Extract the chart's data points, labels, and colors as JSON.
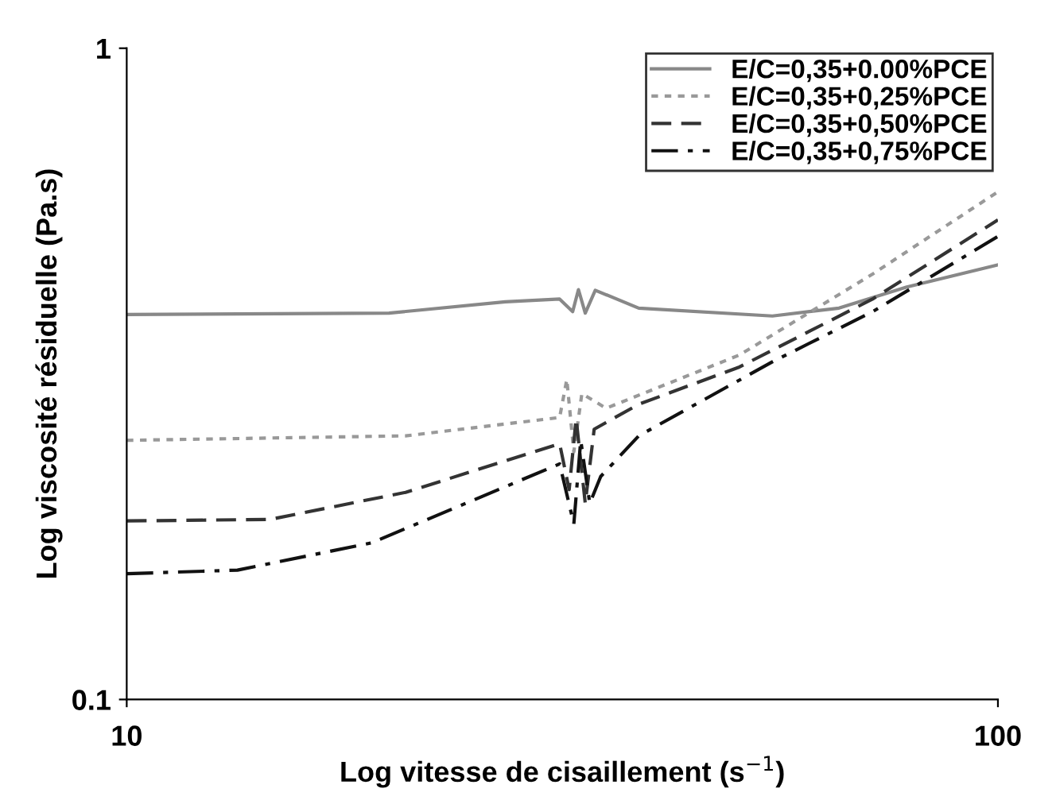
{
  "chart_data": {
    "type": "line",
    "xlabel": "Log vitesse de cisaillement (s$^{−1}$)",
    "ylabel": "Log viscosité résiduelle (Pa.s)",
    "log": "xy",
    "xlim": [
      10,
      100
    ],
    "ylim": [
      0.1,
      1
    ],
    "xticks": [
      10,
      100
    ],
    "yticks": [
      0.1,
      1
    ],
    "grid": false,
    "legend": "top right",
    "marker": "none",
    "series": [
      {
        "name": "E/C=0,35+0.00%PCE",
        "color": "#888888",
        "line_style": "solid",
        "x": [
          10,
          20,
          27.2,
          31.4,
          32.5,
          33,
          33.6,
          34.5,
          38.7,
          55.1,
          65.7,
          78.6,
          100
        ],
        "values": [
          0.39,
          0.392,
          0.408,
          0.412,
          0.394,
          0.426,
          0.392,
          0.425,
          0.399,
          0.388,
          0.399,
          0.43,
          0.465
        ]
      },
      {
        "name": "E/C=0,35+0,25%PCE",
        "color": "#999999",
        "line_style": "dotted",
        "x": [
          10,
          20.9,
          31.4,
          32,
          32.6,
          33.3,
          35.5,
          50.5,
          71.8,
          100
        ],
        "values": [
          0.25,
          0.254,
          0.271,
          0.31,
          0.24,
          0.295,
          0.28,
          0.338,
          0.45,
          0.602
        ]
      },
      {
        "name": "E/C=0,35+0,50%PCE",
        "color": "#333333",
        "line_style": "dashed",
        "x": [
          10,
          14.6,
          20.9,
          31.4,
          32.2,
          32.8,
          33.6,
          34.4,
          38.7,
          50.5,
          71.8,
          100
        ],
        "values": [
          0.188,
          0.189,
          0.208,
          0.247,
          0.21,
          0.27,
          0.2,
          0.26,
          0.284,
          0.324,
          0.412,
          0.545
        ]
      },
      {
        "name": "E/C=0,35+0,75%PCE",
        "color": "#111111",
        "line_style": "dashdot",
        "x": [
          10,
          13.4,
          19.1,
          31.4,
          32.6,
          33.2,
          34,
          35,
          38.7,
          55.1,
          71.8,
          100
        ],
        "values": [
          0.156,
          0.158,
          0.174,
          0.23,
          0.186,
          0.25,
          0.2,
          0.22,
          0.254,
          0.33,
          0.394,
          0.514
        ]
      }
    ]
  }
}
